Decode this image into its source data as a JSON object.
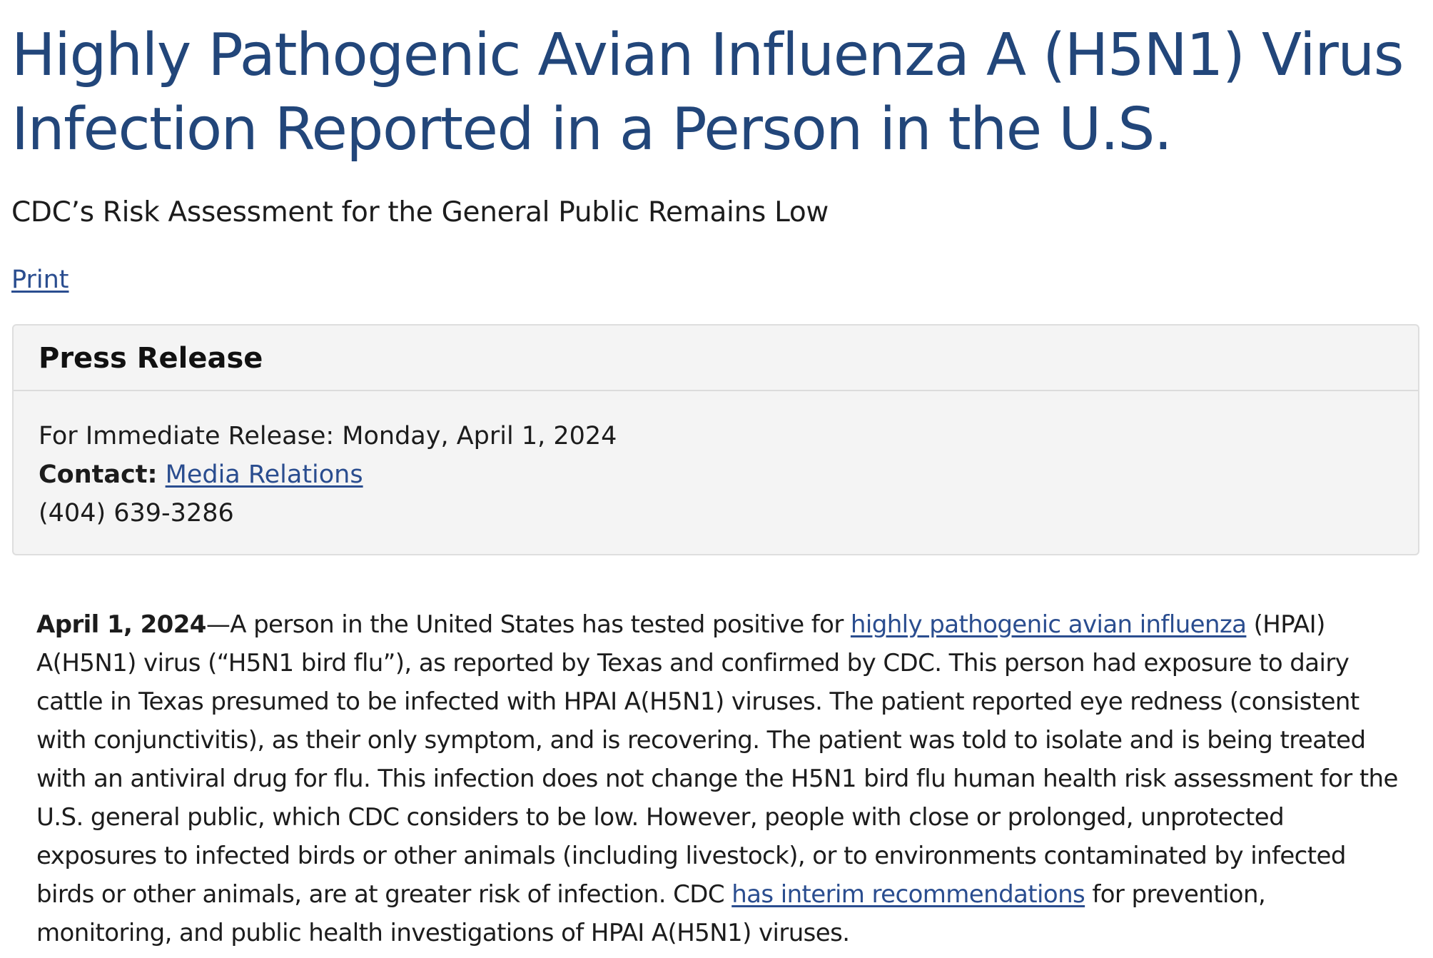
{
  "page": {
    "headline": "Highly Pathogenic Avian Influenza A (H5N1) Virus Infection Reported in a Person in the U.S.",
    "subtitle": "CDC’s Risk Assessment for the General Public Remains Low",
    "print_label": "Print"
  },
  "press_release": {
    "title": "Press Release",
    "release_text": "For Immediate Release: Monday, April 1, 2024",
    "contact_label": "Contact:",
    "contact_link": "Media Relations",
    "phone": "(404) 639-3286"
  },
  "article": {
    "date": "April 1, 2024",
    "part1": "—A person in the United States has tested positive for ",
    "link1": "highly pathogenic avian influenza",
    "part2": " (HPAI) A(H5N1) virus (“H5N1 bird flu”), as reported by Texas and confirmed by CDC. This person had exposure to dairy cattle in Texas presumed to be infected with HPAI A(H5N1) viruses. The patient reported eye redness (consistent with conjunctivitis), as their only symptom, and is recovering. The patient was told to isolate and is being treated with an antiviral drug for flu. This infection does not change the H5N1 bird flu human health risk assessment for the U.S. general public, which CDC considers to be low. However, people with close or prolonged, unprotected exposures to infected birds or other animals (including livestock), or to environments contaminated by infected birds or other animals, are at greater risk of infection. CDC ",
    "link2": "has interim recommendations",
    "part3": " for prevention, monitoring, and public health investigations of HPAI A(H5N1) viruses."
  },
  "colors": {
    "headline": "#22467a",
    "link": "#2a4d8f",
    "press_box_bg": "#f4f4f4"
  }
}
